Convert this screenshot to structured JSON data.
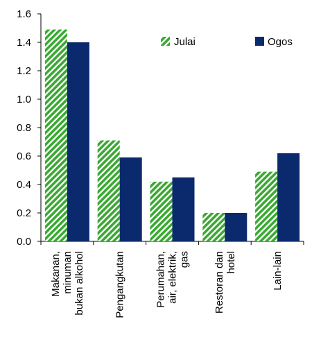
{
  "chart_data": {
    "type": "bar",
    "categories": [
      [
        "Makanan,",
        "minuman",
        "bukan alkohol"
      ],
      [
        "Pengangkutan"
      ],
      [
        "Perumahan,",
        "air, elektrik,",
        "gas"
      ],
      [
        "Restoran dan",
        "hotel"
      ],
      [
        "Lain-lain"
      ]
    ],
    "series": [
      {
        "name": "Julai",
        "values": [
          1.49,
          0.71,
          0.42,
          0.2,
          0.49
        ],
        "color": "#3aa832",
        "pattern": "diagonal-hatch"
      },
      {
        "name": "Ogos",
        "values": [
          1.4,
          0.59,
          0.45,
          0.2,
          0.62
        ],
        "color": "#0b2a6e",
        "pattern": "solid"
      }
    ],
    "y_ticks": [
      "0.0",
      "0.2",
      "0.4",
      "0.6",
      "0.8",
      "1.0",
      "1.2",
      "1.4",
      "1.6"
    ],
    "ylim": [
      0,
      1.6
    ],
    "grid": false,
    "legend_position": "top-right"
  }
}
